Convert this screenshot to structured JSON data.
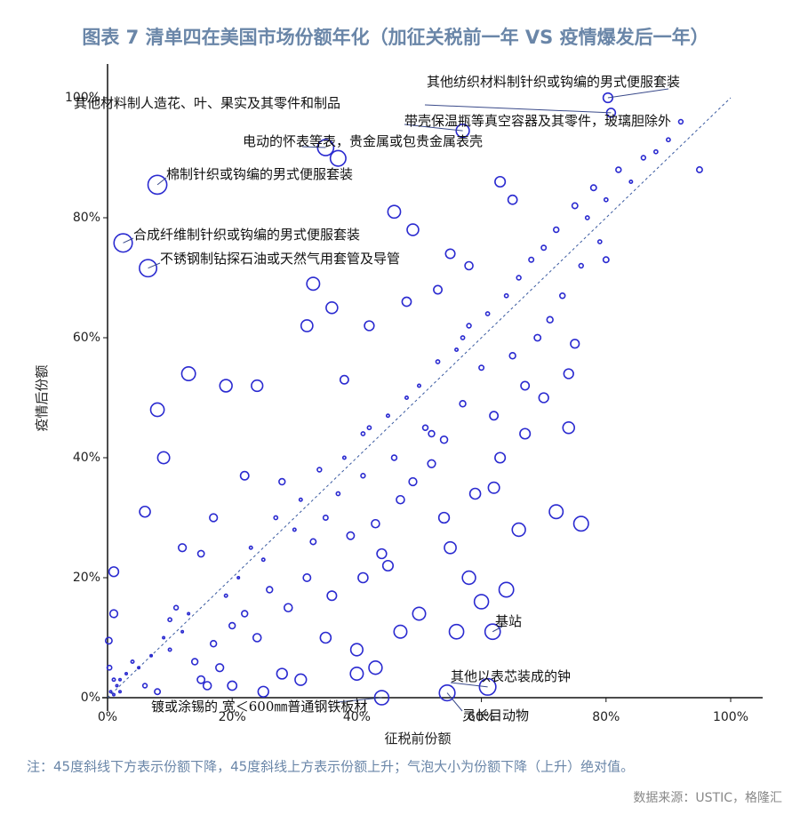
{
  "chart_data": {
    "type": "bubble",
    "title": "图表 7 清单四在美国市场份额年化（加征关税前一年 VS 疫情爆发后一年）",
    "x_label": "征税前份额",
    "y_label": "疫情后份额",
    "note": "注：45度斜线下方表示份额下降，45度斜线上方表示份额上升；气泡大小为份额下降（上升）绝对值。",
    "source": "数据来源：USTIC，格隆汇",
    "xlim": [
      0,
      100
    ],
    "ylim": [
      0,
      100
    ],
    "xticks": [
      {
        "value": 0,
        "label": "0%"
      },
      {
        "value": 20,
        "label": "20%"
      },
      {
        "value": 40,
        "label": "40%"
      },
      {
        "value": 60,
        "label": "60%"
      },
      {
        "value": 80,
        "label": "80%"
      },
      {
        "value": 100,
        "label": "100%"
      }
    ],
    "yticks": [
      {
        "value": 0,
        "label": "0%"
      },
      {
        "value": 20,
        "label": "20%"
      },
      {
        "value": 40,
        "label": "40%"
      },
      {
        "value": 60,
        "label": "60%"
      },
      {
        "value": 80,
        "label": "80%"
      },
      {
        "value": 100,
        "label": "100%"
      }
    ],
    "color": "#2a2ad0",
    "diagonal_color": "#3a5aa0",
    "annotations": [
      "其他纺织材料制针织或钩编的男式便服套装",
      "其他材料制人造花、叶、果实及其零件和制品",
      "带壳保温瓶等真空容器及其零件，玻璃胆除外",
      "电动的怀表等表，贵金属或包贵金属表壳",
      "棉制针织或钩编的男式便服套装",
      "合成纤维制针织或钩编的男式便服套装",
      "不锈钢制钻探石油或天然气用套管及导管",
      "基站",
      "其他以表芯装成的钟",
      "镀或涂锡的 宽＜600㎜普通钢铁板材",
      "灵长目动物"
    ],
    "x": [
      80.3,
      80.8,
      57,
      35,
      37,
      8,
      2.5,
      6.5,
      61.8,
      61,
      44,
      54.5,
      0.5,
      1,
      1.5,
      2,
      0.3,
      0.2,
      3,
      4,
      5,
      2,
      1,
      6,
      8,
      7,
      9,
      10,
      12,
      13,
      11,
      14,
      15,
      16,
      18,
      17,
      20,
      19,
      21,
      22,
      23,
      24,
      25,
      26,
      27,
      28,
      29,
      30,
      31,
      32,
      33,
      34,
      35,
      36,
      37,
      38,
      39,
      40,
      41,
      42,
      43,
      44,
      45,
      46,
      47,
      48,
      49,
      50,
      51,
      52,
      53,
      54,
      55,
      56,
      57,
      58,
      59,
      60,
      61,
      62,
      63,
      64,
      65,
      66,
      67,
      68,
      69,
      70,
      71,
      72,
      73,
      74,
      75,
      76,
      77,
      78,
      79,
      80,
      82,
      84,
      86,
      88,
      90,
      92,
      95,
      1,
      1,
      13,
      8,
      9,
      6,
      19,
      24,
      33,
      41,
      46,
      49,
      63,
      65,
      75,
      80,
      72,
      76,
      62,
      66,
      60,
      50,
      47,
      43,
      40,
      35,
      31,
      25,
      20,
      32,
      36,
      52,
      38,
      41,
      45,
      55,
      58,
      28,
      22,
      17,
      15,
      12,
      10,
      42,
      48,
      53,
      57,
      67,
      70,
      74,
      54,
      58,
      64,
      56
    ],
    "y": [
      100,
      97.5,
      94.5,
      91.7,
      89.9,
      85.5,
      75.8,
      71.6,
      11,
      1.8,
      0,
      0.8,
      1,
      0.5,
      2,
      3,
      5,
      9.5,
      4,
      6,
      5,
      1,
      3,
      2,
      1,
      7,
      10,
      8,
      11,
      14,
      15,
      6,
      3,
      2,
      5,
      9,
      12,
      17,
      20,
      14,
      25,
      10,
      23,
      18,
      30,
      4,
      15,
      28,
      33,
      20,
      26,
      38,
      30,
      17,
      34,
      40,
      27,
      8,
      37,
      45,
      29,
      24,
      47,
      40,
      33,
      50,
      36,
      52,
      45,
      39,
      56,
      43,
      25,
      58,
      49,
      62,
      34,
      55,
      64,
      47,
      40,
      67,
      57,
      70,
      52,
      73,
      60,
      75,
      63,
      78,
      67,
      54,
      82,
      72,
      80,
      85,
      76,
      83,
      88,
      86,
      90,
      91,
      93,
      96,
      88,
      21,
      14,
      54,
      48,
      40,
      31,
      52,
      52,
      69,
      44,
      81,
      78,
      86,
      83,
      59,
      73,
      31,
      29,
      35,
      28,
      16,
      14,
      11,
      5,
      4,
      10,
      3,
      1,
      2,
      62,
      65,
      44,
      53,
      20,
      22,
      74,
      72,
      36,
      37,
      30,
      24,
      25,
      13,
      62,
      66,
      68,
      60,
      44,
      50,
      45,
      30,
      20,
      18,
      11
    ]
  }
}
